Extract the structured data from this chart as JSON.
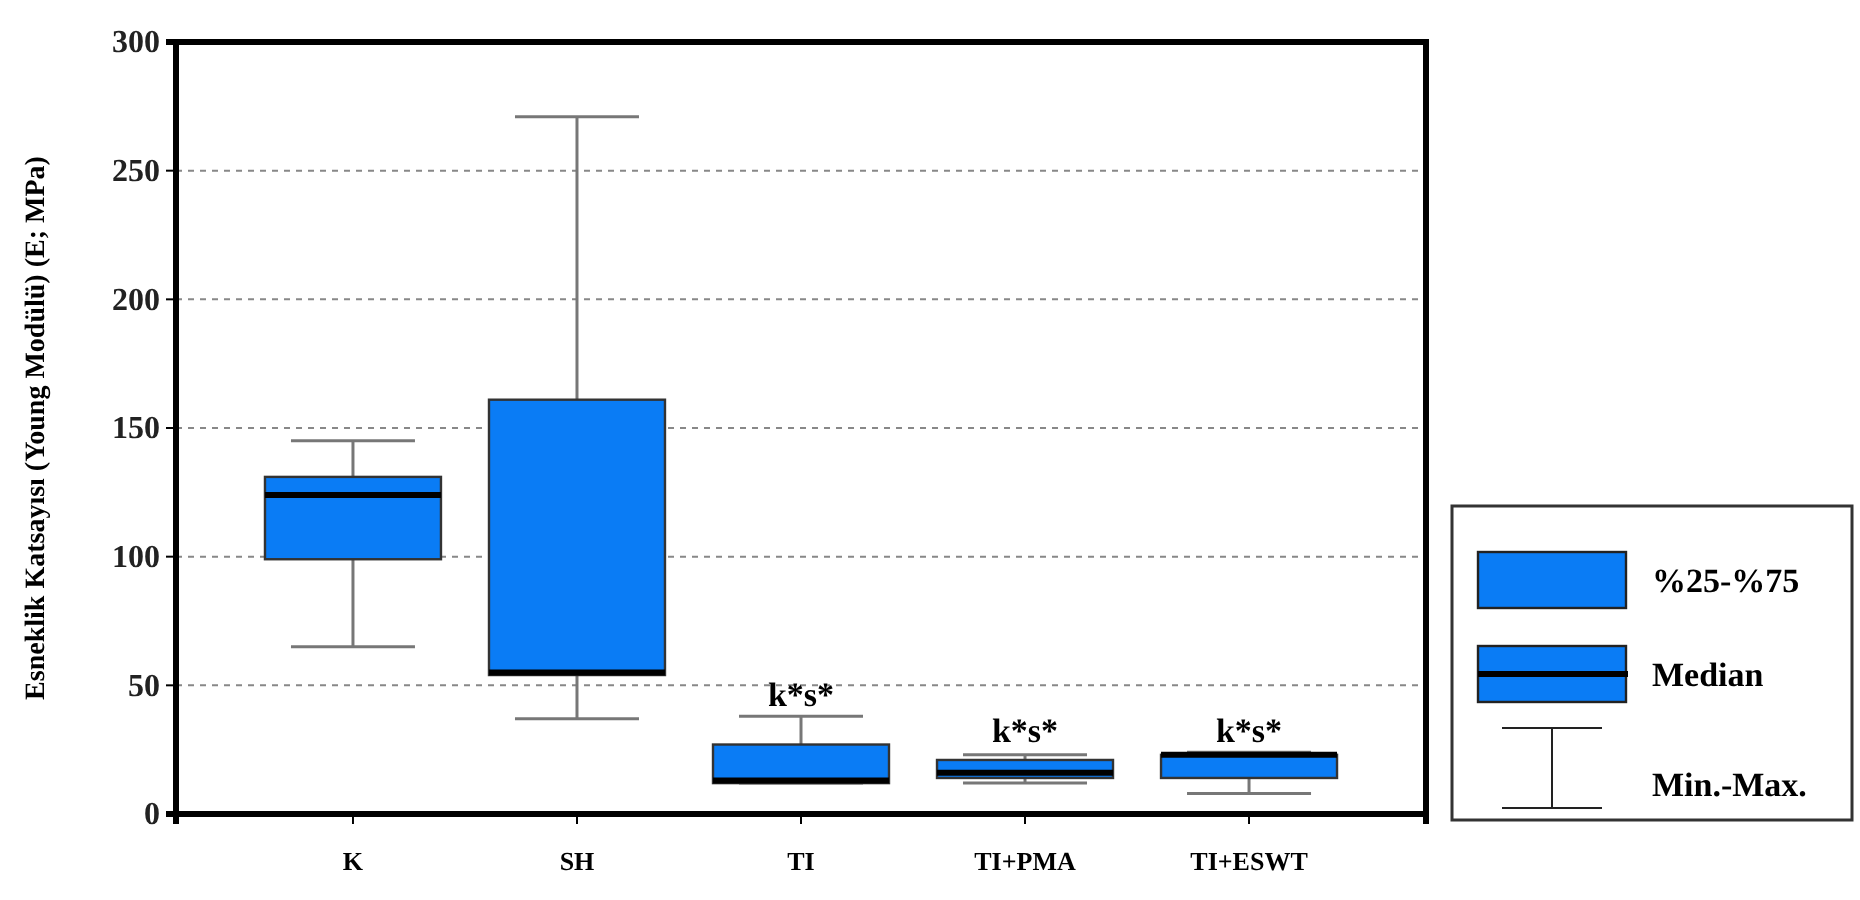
{
  "chart_data": {
    "type": "box",
    "ylabel": "Esneklik Katsayısı (Young Modülü) (E; MPa)",
    "categories": [
      "K",
      "SH",
      "TI",
      "TI+PMA",
      "TI+ESWT"
    ],
    "boxes": [
      {
        "low": 65,
        "q1": 99,
        "median": 124,
        "q3": 131,
        "high": 145
      },
      {
        "low": 37,
        "q1": 54,
        "median": 55,
        "q3": 161,
        "high": 271
      },
      {
        "low": 12,
        "q1": 12,
        "median": 13,
        "q3": 27,
        "high": 38
      },
      {
        "low": 12,
        "q1": 14,
        "median": 16,
        "q3": 21,
        "high": 23
      },
      {
        "low": 8,
        "q1": 14,
        "median": 23,
        "q3": 23,
        "high": 24
      }
    ],
    "color": "#0a7cf5",
    "ylim": [
      0,
      300
    ],
    "yticks": [
      0,
      50,
      100,
      150,
      200,
      250,
      300
    ],
    "grid": "y",
    "annotations": [
      {
        "text": "k*s*",
        "x": "TI",
        "y": 38
      },
      {
        "text": "k*s*",
        "x": "TI+PMA",
        "y": 24
      },
      {
        "text": "k*s*",
        "x": "TI+ESWT",
        "y": 24
      },
      "%25-%75",
      "Median",
      "Min.-Max."
    ]
  }
}
